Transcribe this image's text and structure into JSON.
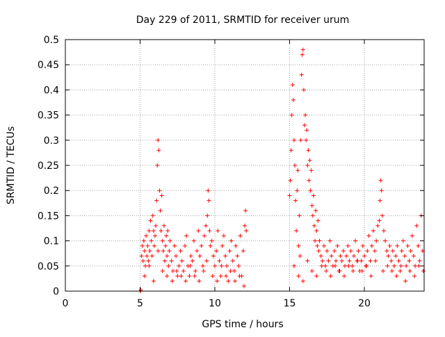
{
  "chart_data": {
    "type": "scatter",
    "title": "Day 229 of 2011, SRMTID for receiver urum",
    "xlabel": "GPS time / hours",
    "ylabel": "SRMTID / TECUs",
    "xlim": [
      0,
      24
    ],
    "ylim": [
      0,
      0.5
    ],
    "x_ticks": [
      0,
      5,
      10,
      15,
      20
    ],
    "x_tick_labels": [
      "0",
      "5",
      "10",
      "15",
      "20"
    ],
    "y_ticks": [
      0,
      0.05,
      0.1,
      0.15,
      0.2,
      0.25,
      0.3,
      0.35,
      0.4,
      0.45,
      0.5
    ],
    "y_tick_labels": [
      "0",
      "0.05",
      "0.1",
      "0.15",
      "0.2",
      "0.25",
      "0.3",
      "0.35",
      "0.4",
      "0.45",
      "0.5"
    ],
    "grid": true,
    "marker": "+",
    "series": [
      {
        "name": "SRMTID",
        "color": "#ff0000",
        "x": [
          5.0,
          5.05,
          5.1,
          5.15,
          5.2,
          5.25,
          5.3,
          5.35,
          5.4,
          5.45,
          5.5,
          5.55,
          5.6,
          5.65,
          5.7,
          5.75,
          5.8,
          5.85,
          5.9,
          5.95,
          6.0,
          6.05,
          6.1,
          6.15,
          6.2,
          6.25,
          6.3,
          6.35,
          6.4,
          6.45,
          6.5,
          6.55,
          6.6,
          6.65,
          6.7,
          6.75,
          6.8,
          6.85,
          6.9,
          6.95,
          7.0,
          7.1,
          7.2,
          7.3,
          7.4,
          7.5,
          7.6,
          7.7,
          7.8,
          7.9,
          8.0,
          8.1,
          8.2,
          8.3,
          8.4,
          8.5,
          8.6,
          8.7,
          8.8,
          8.9,
          9.0,
          9.1,
          9.2,
          9.3,
          9.4,
          9.5,
          9.55,
          9.6,
          9.65,
          9.7,
          9.8,
          9.9,
          10.0,
          10.1,
          10.2,
          10.3,
          10.4,
          10.5,
          10.6,
          10.7,
          10.8,
          10.9,
          11.0,
          11.1,
          11.2,
          11.3,
          11.4,
          11.5,
          11.6,
          11.7,
          11.8,
          11.9,
          12.0,
          12.05,
          12.1,
          5.3,
          5.6,
          5.9,
          6.2,
          6.5,
          6.8,
          7.15,
          7.45,
          7.75,
          8.05,
          8.35,
          8.65,
          8.95,
          9.25,
          9.45,
          9.85,
          10.15,
          10.45,
          10.75,
          11.05,
          11.35,
          11.65,
          11.95,
          15.0,
          15.05,
          15.1,
          15.15,
          15.2,
          15.25,
          15.3,
          15.35,
          15.4,
          15.45,
          15.5,
          15.55,
          15.6,
          15.65,
          15.7,
          15.75,
          15.8,
          15.85,
          15.9,
          15.95,
          16.0,
          16.05,
          16.1,
          16.15,
          16.2,
          16.25,
          16.3,
          16.35,
          16.4,
          16.45,
          16.5,
          16.55,
          16.6,
          16.65,
          16.7,
          16.75,
          16.8,
          16.85,
          16.9,
          16.95,
          17.0,
          17.1,
          17.2,
          17.3,
          17.4,
          17.5,
          17.6,
          17.7,
          17.8,
          17.9,
          18.0,
          18.1,
          18.2,
          18.3,
          18.4,
          18.5,
          18.6,
          18.7,
          18.8,
          18.9,
          19.0,
          19.1,
          19.2,
          19.3,
          19.4,
          19.5,
          19.6,
          19.7,
          19.8,
          19.9,
          20.0,
          20.1,
          20.2,
          20.3,
          20.4,
          20.5,
          20.6,
          20.7,
          20.8,
          20.9,
          21.0,
          21.05,
          21.1,
          21.15,
          21.2,
          21.3,
          21.4,
          21.5,
          21.6,
          21.7,
          21.8,
          21.9,
          22.0,
          22.1,
          22.2,
          22.3,
          22.4,
          22.5,
          22.6,
          22.7,
          22.8,
          22.9,
          23.0,
          23.1,
          23.2,
          23.3,
          23.4,
          23.5,
          23.6,
          23.7,
          23.8,
          23.9,
          15.3,
          15.6,
          15.9,
          16.2,
          16.5,
          16.8,
          17.15,
          17.45,
          17.75,
          18.05,
          18.35,
          18.65,
          18.95,
          19.25,
          19.55,
          19.85,
          20.15,
          20.45,
          20.75,
          21.25,
          21.55,
          21.85,
          22.15,
          22.45,
          22.75,
          23.05,
          23.35,
          23.65,
          23.95
        ],
        "y": [
          0.0,
          0.002,
          0.07,
          0.09,
          0.06,
          0.1,
          0.08,
          0.05,
          0.11,
          0.07,
          0.09,
          0.06,
          0.12,
          0.08,
          0.14,
          0.1,
          0.07,
          0.15,
          0.12,
          0.09,
          0.11,
          0.13,
          0.18,
          0.25,
          0.3,
          0.28,
          0.2,
          0.16,
          0.12,
          0.19,
          0.1,
          0.08,
          0.13,
          0.06,
          0.09,
          0.11,
          0.07,
          0.12,
          0.05,
          0.08,
          0.1,
          0.06,
          0.04,
          0.09,
          0.07,
          0.03,
          0.05,
          0.08,
          0.06,
          0.04,
          0.09,
          0.11,
          0.05,
          0.03,
          0.07,
          0.06,
          0.1,
          0.04,
          0.08,
          0.12,
          0.07,
          0.09,
          0.05,
          0.11,
          0.13,
          0.15,
          0.2,
          0.18,
          0.12,
          0.09,
          0.1,
          0.07,
          0.05,
          0.08,
          0.12,
          0.06,
          0.03,
          0.09,
          0.11,
          0.07,
          0.05,
          0.02,
          0.08,
          0.1,
          0.06,
          0.04,
          0.09,
          0.07,
          0.05,
          0.11,
          0.03,
          0.08,
          0.13,
          0.16,
          0.12,
          0.03,
          0.05,
          0.02,
          0.08,
          0.04,
          0.03,
          0.02,
          0.04,
          0.03,
          0.02,
          0.05,
          0.03,
          0.02,
          0.04,
          0.06,
          0.03,
          0.02,
          0.05,
          0.03,
          0.04,
          0.02,
          0.03,
          0.01,
          0.19,
          0.22,
          0.28,
          0.35,
          0.41,
          0.38,
          0.3,
          0.25,
          0.18,
          0.12,
          0.2,
          0.24,
          0.09,
          0.15,
          0.07,
          0.3,
          0.43,
          0.47,
          0.48,
          0.4,
          0.33,
          0.35,
          0.3,
          0.32,
          0.25,
          0.28,
          0.22,
          0.26,
          0.2,
          0.24,
          0.17,
          0.15,
          0.19,
          0.13,
          0.1,
          0.16,
          0.12,
          0.09,
          0.14,
          0.08,
          0.1,
          0.07,
          0.06,
          0.09,
          0.05,
          0.08,
          0.06,
          0.1,
          0.07,
          0.05,
          0.08,
          0.06,
          0.09,
          0.04,
          0.07,
          0.06,
          0.08,
          0.05,
          0.07,
          0.09,
          0.06,
          0.08,
          0.05,
          0.07,
          0.1,
          0.06,
          0.08,
          0.04,
          0.06,
          0.09,
          0.07,
          0.05,
          0.08,
          0.11,
          0.06,
          0.09,
          0.12,
          0.08,
          0.1,
          0.13,
          0.14,
          0.18,
          0.22,
          0.2,
          0.15,
          0.12,
          0.1,
          0.08,
          0.07,
          0.09,
          0.06,
          0.08,
          0.05,
          0.07,
          0.09,
          0.06,
          0.04,
          0.08,
          0.1,
          0.07,
          0.05,
          0.09,
          0.06,
          0.08,
          0.11,
          0.07,
          0.05,
          0.13,
          0.09,
          0.06,
          0.15,
          0.08,
          0.05,
          0.03,
          0.02,
          0.06,
          0.04,
          0.03,
          0.05,
          0.04,
          0.03,
          0.05,
          0.04,
          0.03,
          0.05,
          0.04,
          0.06,
          0.04,
          0.05,
          0.03,
          0.06,
          0.04,
          0.05,
          0.04,
          0.03,
          0.05,
          0.02,
          0.04,
          0.03,
          0.05,
          0.04
        ]
      }
    ]
  }
}
